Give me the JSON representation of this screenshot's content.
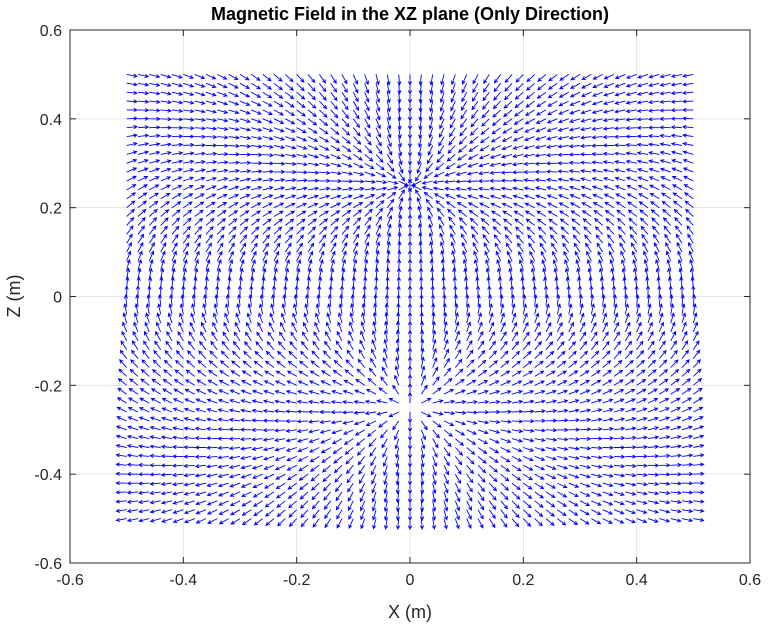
{
  "chart_data": {
    "type": "quiver",
    "title": "Magnetic Field in the XZ plane (Only Direction)",
    "xlabel": "X (m)",
    "ylabel": "Z (m)",
    "xlim": [
      -0.6,
      0.6
    ],
    "ylim": [
      -0.6,
      0.6
    ],
    "x_ticks": [
      "-0.6",
      "-0.4",
      "-0.2",
      "0",
      "0.2",
      "0.4",
      "0.6"
    ],
    "y_ticks": [
      "-0.6",
      "-0.4",
      "-0.2",
      "0",
      "0.2",
      "0.4",
      "0.6"
    ],
    "grid": true,
    "field": {
      "source_description": "pair of opposite charges",
      "positive_pole": [
        0,
        -0.25
      ],
      "negative_pole": [
        0,
        0.25
      ],
      "x_range": [
        -0.5,
        0.5
      ],
      "z_range": [
        -0.5,
        0.5
      ],
      "spacing": 0.02,
      "normalized": true
    },
    "colors": {
      "arrows": "#0000ff",
      "grid": "#e5e5e5",
      "axes": "#262626",
      "background": "#ffffff"
    }
  }
}
